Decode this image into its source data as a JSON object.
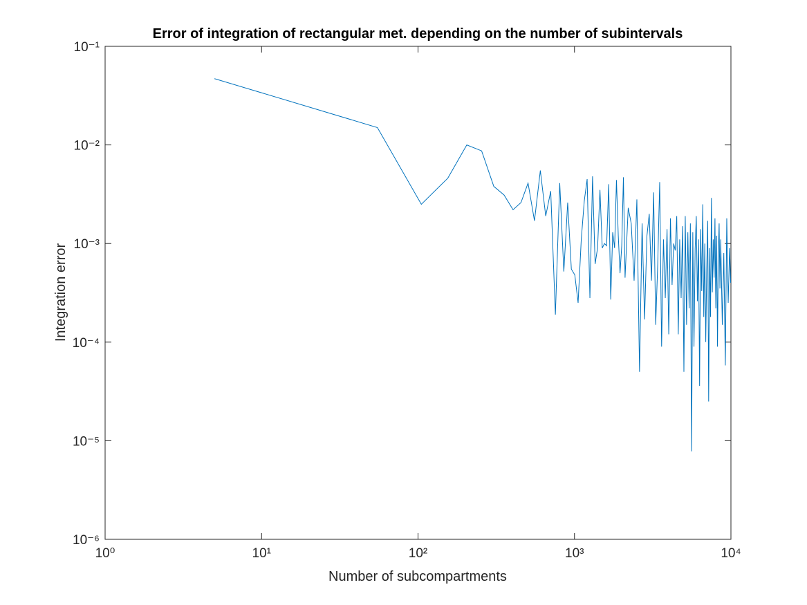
{
  "chart_data": {
    "type": "line",
    "title": "Error of integration of rectangular met. depending on the number of subintervals",
    "xlabel": "Number of subcompartments",
    "ylabel": "Integration error",
    "xscale": "log",
    "yscale": "log",
    "grid": false,
    "xlim": [
      1,
      10000
    ],
    "ylim": [
      1e-06,
      0.1
    ],
    "xticks": [
      {
        "value": 1,
        "label": "10⁰"
      },
      {
        "value": 10,
        "label": "10¹"
      },
      {
        "value": 100,
        "label": "10²"
      },
      {
        "value": 1000,
        "label": "10³"
      },
      {
        "value": 10000,
        "label": "10⁴"
      }
    ],
    "yticks": [
      {
        "value": 1e-06,
        "label": "10⁻⁶"
      },
      {
        "value": 1e-05,
        "label": "10⁻⁵"
      },
      {
        "value": 0.0001,
        "label": "10⁻⁴"
      },
      {
        "value": 0.001,
        "label": "10⁻³"
      },
      {
        "value": 0.01,
        "label": "10⁻²"
      },
      {
        "value": 0.1,
        "label": "10⁻¹"
      }
    ],
    "x": [
      5,
      55,
      105,
      155,
      205,
      255,
      305,
      355,
      405,
      455,
      505,
      555,
      605,
      655,
      705,
      755,
      805,
      855,
      905,
      955,
      1005,
      1055,
      1105,
      1155,
      1205,
      1255,
      1305,
      1355,
      1405,
      1455,
      1505,
      1555,
      1605,
      1655,
      1705,
      1755,
      1805,
      1855,
      1905,
      1955,
      2005,
      2055,
      2105,
      2205,
      2305,
      2405,
      2505,
      2605,
      2705,
      2805,
      2905,
      3005,
      3105,
      3205,
      3305,
      3405,
      3505,
      3605,
      3705,
      3805,
      3905,
      4005,
      4105,
      4205,
      4305,
      4405,
      4505,
      4605,
      4705,
      4805,
      4905,
      5005,
      5105,
      5205,
      5305,
      5405,
      5505,
      5605,
      5705,
      5805,
      5905,
      6005,
      6105,
      6205,
      6305,
      6405,
      6505,
      6605,
      6705,
      6805,
      6905,
      7005,
      7105,
      7205,
      7305,
      7405,
      7505,
      7605,
      7705,
      7805,
      7905,
      8005,
      8105,
      8205,
      8305,
      8405,
      8505,
      8605,
      8805,
      9005,
      9205,
      9405,
      9605,
      9805,
      9955
    ],
    "series": [
      {
        "name": "Integration error",
        "color": "#0072bd",
        "values": [
          0.047,
          0.015,
          0.0025,
          0.0046,
          0.01,
          0.0087,
          0.0038,
          0.0031,
          0.0022,
          0.0026,
          0.0041,
          0.0017,
          0.0055,
          0.0019,
          0.0034,
          0.00019,
          0.0041,
          0.00052,
          0.0026,
          0.00055,
          0.00048,
          0.00025,
          0.0011,
          0.0027,
          0.0045,
          0.00028,
          0.0048,
          0.00062,
          0.0009,
          0.0035,
          0.0009,
          0.001,
          0.00095,
          0.004,
          0.00027,
          0.0013,
          0.0009,
          0.0044,
          0.0012,
          0.0005,
          0.00095,
          0.0047,
          0.00045,
          0.0023,
          0.0016,
          0.00042,
          0.0028,
          5e-05,
          0.0016,
          0.00017,
          0.0012,
          0.002,
          0.00042,
          0.0033,
          0.00015,
          0.00062,
          0.0042,
          9e-05,
          0.0011,
          0.00028,
          0.0014,
          0.00012,
          0.0018,
          0.00038,
          0.001,
          0.00085,
          0.0019,
          0.00012,
          0.0011,
          0.00028,
          0.0015,
          5e-05,
          0.0019,
          0.00015,
          0.0013,
          0.00022,
          0.0016,
          7.8e-06,
          0.0013,
          9e-05,
          0.00088,
          0.0019,
          0.00026,
          0.0011,
          3.6e-05,
          0.0014,
          0.00033,
          0.0025,
          0.00018,
          0.001,
          0.0001,
          0.00055,
          0.0017,
          2.5e-05,
          0.0009,
          0.00018,
          0.0029,
          0.00032,
          0.0011,
          0.00045,
          0.0018,
          0.00022,
          0.0012,
          9e-05,
          0.00075,
          0.0016,
          0.00035,
          0.0011,
          0.00015,
          0.0008,
          5.8e-05,
          0.0018,
          0.00025,
          0.0009,
          0.0004
        ]
      }
    ]
  }
}
